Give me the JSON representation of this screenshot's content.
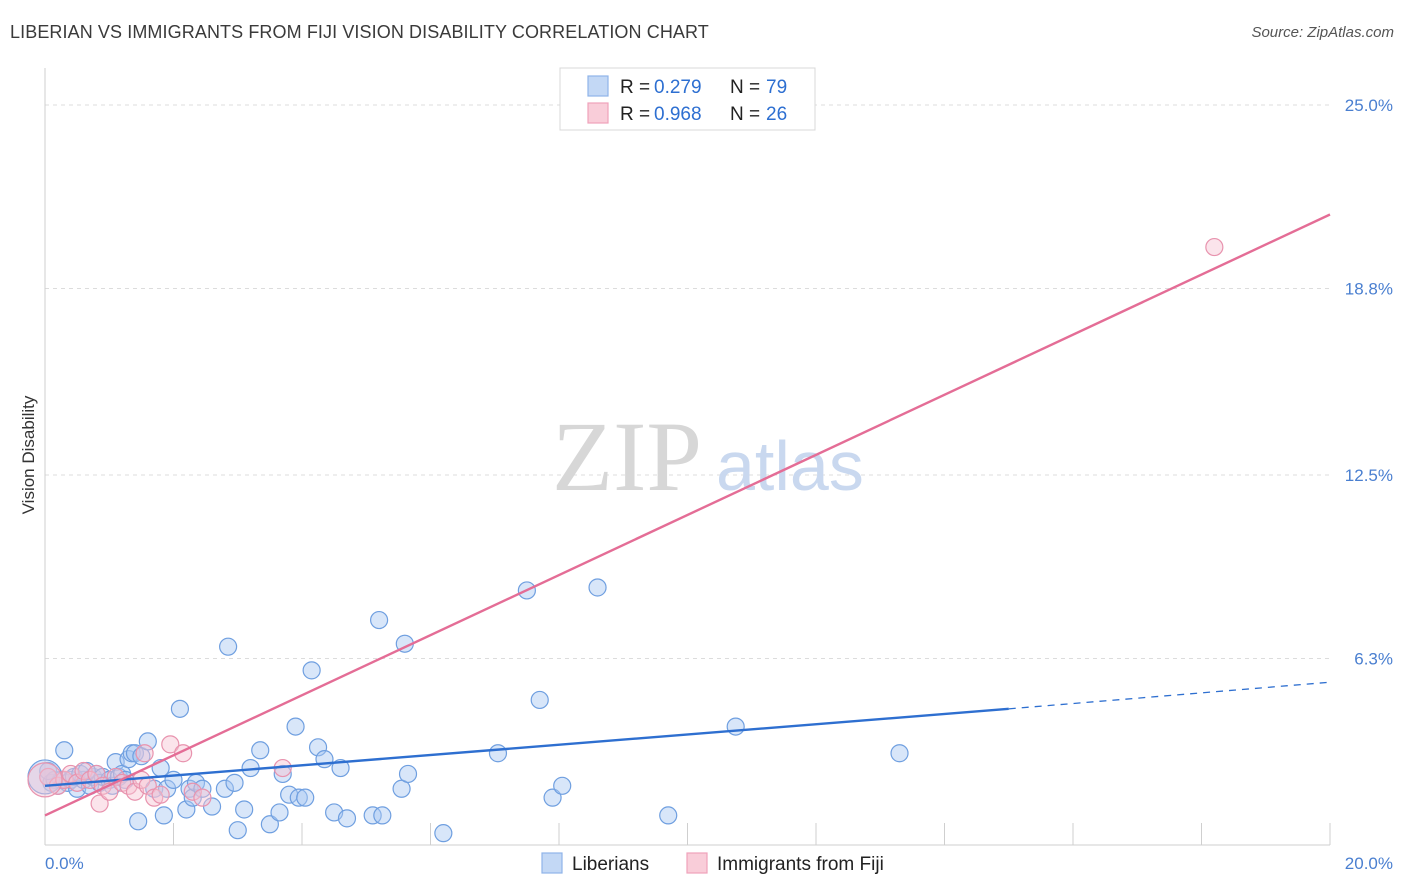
{
  "title": "LIBERIAN VS IMMIGRANTS FROM FIJI VISION DISABILITY CORRELATION CHART",
  "source": "Source: ZipAtlas.com",
  "watermark": {
    "part1": "ZIP",
    "part2": "atlas"
  },
  "legend_top": {
    "rows": [
      {
        "r_label": "R = ",
        "r_value": "0.279",
        "n_label": "N = ",
        "n_value": "79",
        "color": "#9ec0ef"
      },
      {
        "r_label": "R = ",
        "r_value": "0.968",
        "n_label": "N = ",
        "n_value": "26",
        "color": "#f4b6c8"
      }
    ]
  },
  "legend_bottom": [
    {
      "label": "Liberians",
      "color": "#9ec0ef"
    },
    {
      "label": "Immigrants from Fiji",
      "color": "#f4b6c8"
    }
  ],
  "chart_data": {
    "type": "scatter",
    "title": "LIBERIAN VS IMMIGRANTS FROM FIJI VISION DISABILITY CORRELATION CHART",
    "xlabel": "",
    "ylabel": "Vision Disability",
    "xlim": [
      0,
      20
    ],
    "ylim": [
      0,
      26.25
    ],
    "x_tick_labels": [
      {
        "value": 0,
        "label": "0.0%"
      },
      {
        "value": 20,
        "label": "20.0%"
      }
    ],
    "y_tick_labels": [
      {
        "value": 6.3,
        "label": "6.3%"
      },
      {
        "value": 12.5,
        "label": "12.5%"
      },
      {
        "value": 18.8,
        "label": "18.8%"
      },
      {
        "value": 25.0,
        "label": "25.0%"
      }
    ],
    "series": [
      {
        "name": "Liberians",
        "color": "#6f9fe0",
        "fill": "#a9c8f2",
        "trend": {
          "x0": 0,
          "y0": 2.0,
          "x1": 15.0,
          "y1": 4.6,
          "dash_x1": 20,
          "dash_y1": 5.5,
          "color": "#2e6fd0"
        },
        "points": [
          [
            0.05,
            2.3
          ],
          [
            0.1,
            2.1
          ],
          [
            0.15,
            2.2
          ],
          [
            0.2,
            2.0
          ],
          [
            0.25,
            2.2
          ],
          [
            0.3,
            3.2
          ],
          [
            0.35,
            2.1
          ],
          [
            0.4,
            2.2
          ],
          [
            0.45,
            2.3
          ],
          [
            0.5,
            1.9
          ],
          [
            0.6,
            2.2
          ],
          [
            0.7,
            2.0
          ],
          [
            0.75,
            2.3
          ],
          [
            0.8,
            2.4
          ],
          [
            0.85,
            2.1
          ],
          [
            0.9,
            2.3
          ],
          [
            1.0,
            2.2
          ],
          [
            1.05,
            2.0
          ],
          [
            1.1,
            2.8
          ],
          [
            1.15,
            2.3
          ],
          [
            1.2,
            2.4
          ],
          [
            1.3,
            2.9
          ],
          [
            1.35,
            3.1
          ],
          [
            1.4,
            3.1
          ],
          [
            1.45,
            0.8
          ],
          [
            1.5,
            3.0
          ],
          [
            1.6,
            3.5
          ],
          [
            1.7,
            1.9
          ],
          [
            1.8,
            2.6
          ],
          [
            1.85,
            1.0
          ],
          [
            1.9,
            1.9
          ],
          [
            2.0,
            2.2
          ],
          [
            2.1,
            4.6
          ],
          [
            2.2,
            1.2
          ],
          [
            2.25,
            1.9
          ],
          [
            2.3,
            1.6
          ],
          [
            2.35,
            2.1
          ],
          [
            2.45,
            1.9
          ],
          [
            2.6,
            1.3
          ],
          [
            2.8,
            1.9
          ],
          [
            2.85,
            6.7
          ],
          [
            2.95,
            2.1
          ],
          [
            3.0,
            0.5
          ],
          [
            3.1,
            1.2
          ],
          [
            3.2,
            2.6
          ],
          [
            3.35,
            3.2
          ],
          [
            3.5,
            0.7
          ],
          [
            3.65,
            1.1
          ],
          [
            3.7,
            2.4
          ],
          [
            3.8,
            1.7
          ],
          [
            3.9,
            4.0
          ],
          [
            3.95,
            1.6
          ],
          [
            4.05,
            1.6
          ],
          [
            4.15,
            5.9
          ],
          [
            4.25,
            3.3
          ],
          [
            4.35,
            2.9
          ],
          [
            4.5,
            1.1
          ],
          [
            4.6,
            2.6
          ],
          [
            4.7,
            0.9
          ],
          [
            5.1,
            1.0
          ],
          [
            5.2,
            7.6
          ],
          [
            5.25,
            1.0
          ],
          [
            5.55,
            1.9
          ],
          [
            5.6,
            6.8
          ],
          [
            5.65,
            2.4
          ],
          [
            6.2,
            0.4
          ],
          [
            7.05,
            3.1
          ],
          [
            7.5,
            8.6
          ],
          [
            7.7,
            4.9
          ],
          [
            7.9,
            1.6
          ],
          [
            8.05,
            2.0
          ],
          [
            8.6,
            8.7
          ],
          [
            9.7,
            1.0
          ],
          [
            10.75,
            4.0
          ],
          [
            13.3,
            3.1
          ],
          [
            0.05,
            2.5
          ],
          [
            0.55,
            2.4
          ],
          [
            0.65,
            2.5
          ],
          [
            1.25,
            2.2
          ]
        ],
        "big_points": [
          [
            0.0,
            2.3
          ]
        ]
      },
      {
        "name": "Immigrants from Fiji",
        "color": "#e893ae",
        "fill": "#f7c4d3",
        "trend": {
          "x0": 0,
          "y0": 1.0,
          "x1": 20.0,
          "y1": 21.3,
          "color": "#e46d96"
        },
        "points": [
          [
            0.05,
            2.3
          ],
          [
            0.2,
            2.0
          ],
          [
            0.3,
            2.2
          ],
          [
            0.4,
            2.4
          ],
          [
            0.5,
            2.1
          ],
          [
            0.6,
            2.5
          ],
          [
            0.7,
            2.2
          ],
          [
            0.8,
            2.4
          ],
          [
            0.85,
            1.4
          ],
          [
            0.9,
            2.0
          ],
          [
            1.0,
            1.8
          ],
          [
            1.1,
            2.3
          ],
          [
            1.2,
            2.1
          ],
          [
            1.3,
            2.0
          ],
          [
            1.4,
            1.8
          ],
          [
            1.5,
            2.2
          ],
          [
            1.55,
            3.1
          ],
          [
            1.6,
            2.0
          ],
          [
            1.7,
            1.6
          ],
          [
            1.8,
            1.7
          ],
          [
            1.95,
            3.4
          ],
          [
            2.15,
            3.1
          ],
          [
            2.3,
            1.8
          ],
          [
            2.45,
            1.6
          ],
          [
            3.7,
            2.6
          ],
          [
            18.2,
            20.2
          ]
        ],
        "big_points": [
          [
            0.0,
            2.2
          ]
        ]
      }
    ]
  }
}
